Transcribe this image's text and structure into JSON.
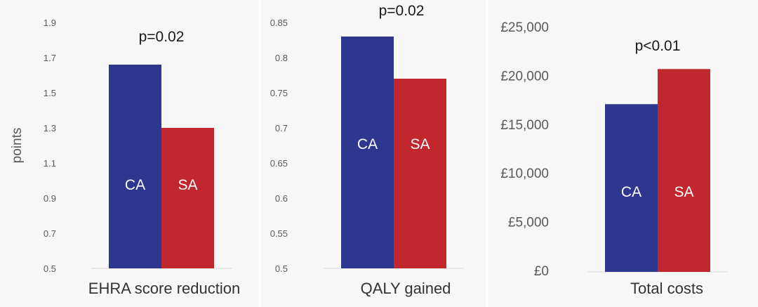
{
  "colors": {
    "CA": "#2e3790",
    "SA": "#c1272d"
  },
  "chart_data": [
    {
      "type": "bar",
      "categories": [
        "CA",
        "SA"
      ],
      "values": [
        1.66,
        1.3
      ],
      "ylabel": "points",
      "xlabel": "EHRA score reduction",
      "annotation": "p=0.02",
      "ylim": [
        0.5,
        1.9
      ],
      "yticks": [
        "1.9",
        "1.7",
        "1.5",
        "1.3",
        "1.1",
        "0.9",
        "0.7",
        "0.5"
      ]
    },
    {
      "type": "bar",
      "categories": [
        "CA",
        "SA"
      ],
      "values": [
        0.83,
        0.77
      ],
      "xlabel": "QALY gained",
      "annotation": "p=0.02",
      "ylim": [
        0.5,
        0.85
      ],
      "yticks": [
        "0.85",
        "0.8",
        "0.75",
        "0.7",
        "0.65",
        "0.6",
        "0.55",
        "0.5"
      ]
    },
    {
      "type": "bar",
      "categories": [
        "CA",
        "SA"
      ],
      "values": [
        17200,
        20800
      ],
      "xlabel": "Total costs",
      "annotation": "p<0.01",
      "ylim": [
        0,
        25000
      ],
      "yticks": [
        "£25,000",
        "£20,000",
        "£15,000",
        "£10,000",
        "£5,000",
        "£0"
      ]
    }
  ]
}
